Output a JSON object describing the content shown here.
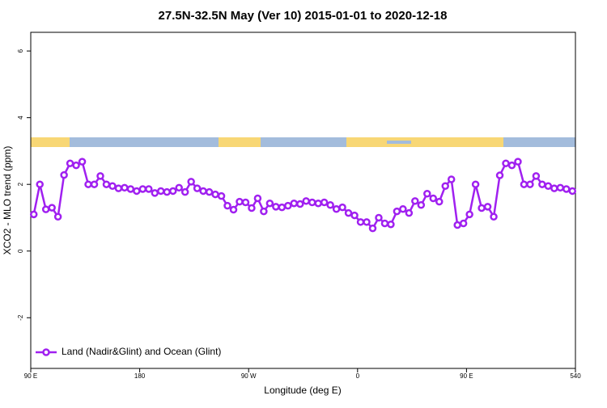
{
  "chart_data": {
    "type": "line",
    "title": "27.5N-32.5N May (Ver 10)   2015-01-01 to 2020-12-18",
    "x_label": "Longitude (deg E)",
    "y_label": "XCO2 - MLO trend (ppm)",
    "xlim": [
      90,
      540
    ],
    "xticks": [
      {
        "value": 90,
        "label": "90 E"
      },
      180,
      {
        "value": 270,
        "label": "90 W"
      },
      {
        "value": 360,
        "label": "0"
      },
      {
        "value": 450,
        "label": "90 E"
      },
      540
    ],
    "ylim": [
      -3.52,
      6.56
    ],
    "yticks": [
      -2,
      0,
      2,
      4,
      6
    ],
    "grid": false,
    "legend": "bottom-left",
    "x": [
      92.5,
      97.5,
      102.5,
      107.5,
      112.5,
      117.5,
      122.5,
      127.5,
      132.5,
      137.5,
      142.5,
      147.5,
      152.5,
      157.5,
      162.5,
      167.5,
      172.5,
      177.5,
      182.5,
      187.5,
      192.5,
      197.5,
      202.5,
      207.5,
      212.5,
      217.5,
      222.5,
      227.5,
      232.5,
      237.5,
      242.5,
      247.5,
      252.5,
      257.5,
      262.5,
      267.5,
      272.5,
      277.5,
      282.5,
      287.5,
      292.5,
      297.5,
      302.5,
      307.5,
      312.5,
      317.5,
      322.5,
      327.5,
      332.5,
      337.5,
      342.5,
      347.5,
      352.5,
      357.5,
      362.5,
      367.5,
      372.5,
      377.5,
      382.5,
      387.5,
      392.5,
      397.5,
      402.5,
      407.5,
      412.5,
      417.5,
      422.5,
      427.5,
      432.5,
      437.5,
      442.5,
      447.5,
      452.5,
      457.5,
      462.5,
      467.5,
      472.5,
      477.5,
      482.5,
      487.5,
      492.5,
      497.5,
      502.5,
      507.5,
      512.5,
      517.5,
      522.5,
      527.5,
      532.5,
      537.5
    ],
    "series": [
      {
        "name": "Land (Nadir&Glint) and Ocean (Glint)",
        "color": "#a020f0",
        "values": [
          1.1,
          2.0,
          1.25,
          1.3,
          1.03,
          2.28,
          2.63,
          2.57,
          2.68,
          2.0,
          2.0,
          2.25,
          2.0,
          1.95,
          1.88,
          1.9,
          1.86,
          1.8,
          1.86,
          1.86,
          1.74,
          1.8,
          1.77,
          1.8,
          1.9,
          1.77,
          2.08,
          1.88,
          1.8,
          1.77,
          1.7,
          1.65,
          1.36,
          1.24,
          1.48,
          1.46,
          1.29,
          1.58,
          1.19,
          1.43,
          1.33,
          1.31,
          1.36,
          1.43,
          1.41,
          1.5,
          1.46,
          1.43,
          1.46,
          1.38,
          1.26,
          1.31,
          1.14,
          1.07,
          0.87,
          0.87,
          0.68,
          1.0,
          0.83,
          0.8,
          1.19,
          1.26,
          1.14,
          1.5,
          1.38,
          1.72,
          1.58,
          1.48,
          1.95,
          2.15,
          0.78,
          0.83,
          1.1,
          2.0,
          1.29,
          1.33,
          1.03,
          2.27,
          2.63,
          2.57,
          2.68,
          2.0,
          2.0,
          2.25,
          2.0,
          1.95,
          1.88,
          1.9,
          1.86,
          1.8
        ]
      }
    ]
  }
}
